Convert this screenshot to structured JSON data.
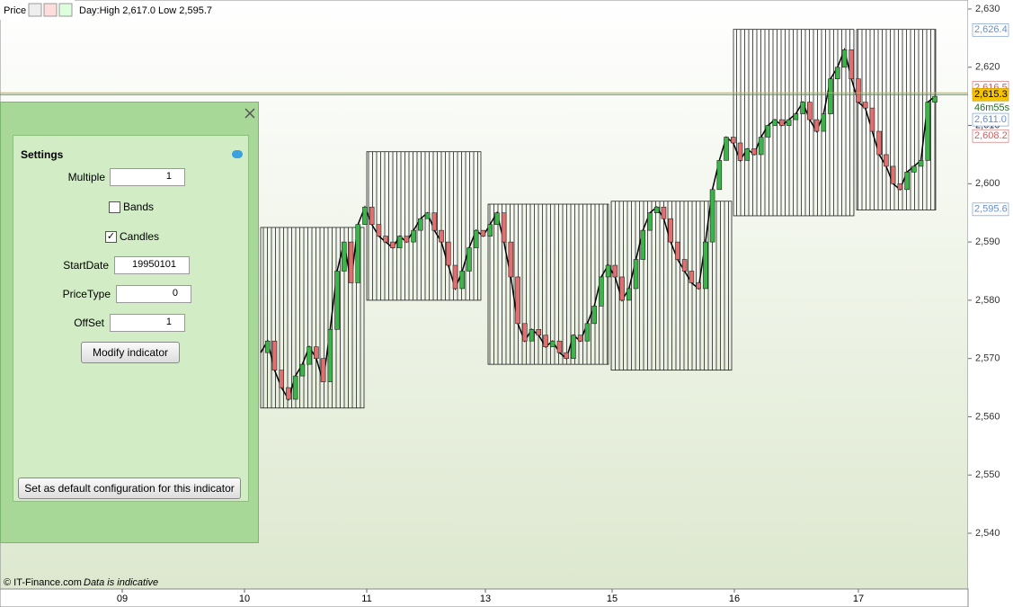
{
  "header": {
    "title": "Price",
    "info": "Day:High 2,617.0 Low 2,595.7"
  },
  "footer": {
    "copyright": "© IT-Finance.com",
    "note": "Data is indicative"
  },
  "chart_data": {
    "type": "line",
    "x_labels": [
      "09",
      "10",
      "11",
      "13",
      "15",
      "16",
      "17"
    ],
    "ylim": [
      2530,
      2631.5
    ],
    "yticks": [
      {
        "value": 2630,
        "label": "2,630"
      },
      {
        "value": 2620,
        "label": "2,620"
      },
      {
        "value": 2610,
        "label": "2,610"
      },
      {
        "value": 2600,
        "label": "2,600"
      },
      {
        "value": 2590,
        "label": "2,590"
      },
      {
        "value": 2580,
        "label": "2,580"
      },
      {
        "value": 2570,
        "label": "2,570"
      },
      {
        "value": 2560,
        "label": "2,560"
      },
      {
        "value": 2550,
        "label": "2,550"
      },
      {
        "value": 2540,
        "label": "2,540"
      }
    ],
    "price_labels": [
      {
        "value": 2626.4,
        "label": "2,626.4",
        "color": "#6a8fc8"
      },
      {
        "value": 2616.5,
        "label": "2,616.5",
        "color": "#d06060"
      },
      {
        "value": 2615.3,
        "label": "2,615.3",
        "color": "#000000"
      },
      {
        "value": 2611.0,
        "label": "2,611.0",
        "color": "#6a8fc8"
      },
      {
        "value": 2608.2,
        "label": "2,608.2",
        "color": "#d06060"
      },
      {
        "value": 2595.6,
        "label": "2,595.6",
        "color": "#6a8fc8"
      }
    ],
    "countdown": "46m55s",
    "day_ranges": [
      {
        "high": 2592.5,
        "low": 2561.5
      },
      {
        "high": 2605.5,
        "low": 2580
      },
      {
        "high": 2596.5,
        "low": 2569
      },
      {
        "high": 2597,
        "low": 2568
      },
      {
        "high": 2626.5,
        "low": 2594.5
      },
      {
        "high": 2626.5,
        "low": 2595.5
      }
    ],
    "series": [
      {
        "name": "Price",
        "color": "#000000",
        "values": [
          2571,
          2573,
          2568,
          2565,
          2563,
          2567,
          2569,
          2572,
          2570,
          2566,
          2575,
          2585,
          2590,
          2583,
          2593,
          2596,
          2593,
          2591,
          2590,
          2589,
          2591,
          2590,
          2592,
          2594,
          2595,
          2592,
          2590,
          2586,
          2582,
          2585,
          2589,
          2592,
          2591,
          2593,
          2595,
          2590,
          2584,
          2576,
          2573,
          2575,
          2574,
          2572,
          2573,
          2571,
          2570,
          2574,
          2573,
          2576,
          2579,
          2584,
          2586,
          2584,
          2580,
          2582,
          2587,
          2592,
          2595,
          2596,
          2594,
          2590,
          2587,
          2585,
          2583,
          2582,
          2590,
          2599,
          2604,
          2608,
          2607,
          2604,
          2606,
          2605,
          2608,
          2610,
          2611,
          2610,
          2611,
          2612,
          2614,
          2611,
          2609,
          2612,
          2618,
          2620,
          2623,
          2618,
          2614,
          2613,
          2609,
          2605,
          2603,
          2600,
          2599,
          2602,
          2603,
          2604,
          2614,
          2615
        ]
      }
    ]
  },
  "settings": {
    "title": "Settings",
    "multiple_label": "Multiple",
    "multiple": 1,
    "bands": "Bands",
    "candles": "Candles",
    "startdate_label": "StartDate",
    "startdate": 19950101,
    "pricetype_label": "PriceType",
    "pricetype": 0,
    "offset_label": "OffSet",
    "offset": 1,
    "modify_button": "Modify indicator",
    "default_button": "Set as default configuration for this indicator"
  }
}
